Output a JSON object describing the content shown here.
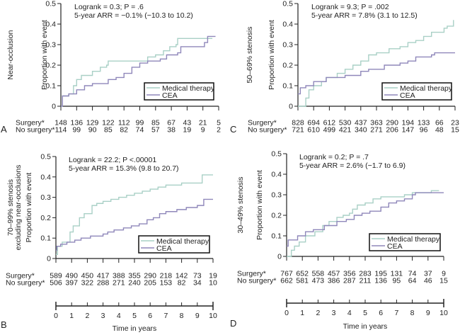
{
  "colors": {
    "medical": "#a9d0c6",
    "cea": "#8f87ba",
    "axis": "#222222"
  },
  "time_axis": {
    "label": "Time in years",
    "ticks": [
      "0",
      "1",
      "2",
      "3",
      "4",
      "5",
      "6",
      "7",
      "8",
      "9",
      "10"
    ]
  },
  "risk_labels": {
    "surgery": "Surgery*",
    "no_surgery": "No surgery*"
  },
  "chart_data": [
    {
      "panel": "A",
      "type": "line",
      "group_label": "Near-occlusion",
      "ylabel": "Proportion with event",
      "xlabel": "Time in years",
      "xlim": [
        0,
        10
      ],
      "ylim": [
        0,
        0.5
      ],
      "yticks": [
        "0",
        "0.1",
        "0.2",
        "0.3",
        "0.4",
        "0.5"
      ],
      "stats": [
        "Logrank = 0.3; P = .6",
        "5-year ARR = −0.1% (−10.3 to 10.2)"
      ],
      "legend": [
        "Medical therapy",
        "CEA"
      ],
      "legend_position": "bottom-right",
      "series": [
        {
          "name": "Medical therapy",
          "x": [
            0,
            0.1,
            0.5,
            0.8,
            1.0,
            1.3,
            2.0,
            2.5,
            2.9,
            3.0,
            5.4,
            5.5,
            6.0,
            6.5,
            6.9,
            7.3,
            7.4,
            9.6
          ],
          "y": [
            0,
            0.05,
            0.06,
            0.1,
            0.13,
            0.15,
            0.17,
            0.19,
            0.2,
            0.22,
            0.22,
            0.24,
            0.25,
            0.27,
            0.29,
            0.3,
            0.33,
            0.33
          ]
        },
        {
          "name": "CEA",
          "x": [
            0,
            0.1,
            0.5,
            1.0,
            1.5,
            2.0,
            3.0,
            3.5,
            4.0,
            4.5,
            5.0,
            5.5,
            6.3,
            6.7,
            7.4,
            7.6,
            9.1,
            9.3,
            9.8
          ],
          "y": [
            0,
            0.05,
            0.06,
            0.08,
            0.1,
            0.11,
            0.13,
            0.14,
            0.16,
            0.19,
            0.21,
            0.22,
            0.23,
            0.25,
            0.26,
            0.29,
            0.31,
            0.34,
            0.34
          ]
        }
      ],
      "at_risk": {
        "surgery": [
          "148",
          "136",
          "129",
          "122",
          "112",
          "99",
          "85",
          "67",
          "43",
          "21",
          "5"
        ],
        "no_surgery": [
          "114",
          "99",
          "90",
          "85",
          "82",
          "74",
          "57",
          "38",
          "19",
          "9",
          "2"
        ]
      }
    },
    {
      "panel": "B",
      "type": "line",
      "group_label": "70–99% stenosis excluding near-occlusions",
      "group_label_lines": [
        "70–99% stenosis",
        "excluding near-occlusions"
      ],
      "ylabel": "Proportion with event",
      "xlabel": "Time in years",
      "xlim": [
        0,
        10
      ],
      "ylim": [
        0,
        0.5
      ],
      "yticks": [
        "0",
        "0.1",
        "0.2",
        "0.3",
        "0.4",
        "0.5"
      ],
      "stats": [
        "Logrank = 22.2; P <.00001",
        "5-year ARR = 15.3% (9.8 to 20.7)"
      ],
      "legend": [
        "Medical therapy",
        "CEA"
      ],
      "legend_position": "bottom-right",
      "series": [
        {
          "name": "Medical therapy",
          "x": [
            0,
            0.1,
            0.4,
            0.9,
            1.1,
            1.5,
            1.8,
            2.3,
            2.6,
            3.0,
            3.5,
            4.0,
            4.5,
            5.0,
            5.5,
            6.0,
            6.5,
            7.0,
            8.0,
            9.3,
            9.31,
            10
          ],
          "y": [
            0.02,
            0.06,
            0.08,
            0.13,
            0.16,
            0.2,
            0.22,
            0.26,
            0.27,
            0.28,
            0.29,
            0.3,
            0.31,
            0.32,
            0.33,
            0.34,
            0.35,
            0.36,
            0.37,
            0.37,
            0.41,
            0.41
          ]
        },
        {
          "name": "CEA",
          "x": [
            0,
            0.05,
            0.3,
            0.7,
            1.2,
            1.6,
            2.2,
            3.0,
            3.3,
            3.7,
            4.3,
            4.8,
            5.3,
            5.8,
            6.2,
            6.6,
            7.0,
            7.7,
            8.3,
            9.0,
            9.4,
            9.41,
            10
          ],
          "y": [
            0.04,
            0.06,
            0.07,
            0.08,
            0.09,
            0.1,
            0.11,
            0.12,
            0.13,
            0.14,
            0.15,
            0.16,
            0.17,
            0.19,
            0.2,
            0.22,
            0.23,
            0.24,
            0.25,
            0.26,
            0.26,
            0.29,
            0.29
          ]
        }
      ],
      "at_risk": {
        "surgery": [
          "589",
          "490",
          "450",
          "417",
          "388",
          "355",
          "290",
          "218",
          "142",
          "73",
          "19"
        ],
        "no_surgery": [
          "506",
          "397",
          "322",
          "288",
          "271",
          "240",
          "205",
          "153",
          "82",
          "34",
          "10"
        ]
      }
    },
    {
      "panel": "C",
      "type": "line",
      "group_label": "50–69% stenosis",
      "ylabel": "Proportion with event",
      "xlabel": "Time in years",
      "xlim": [
        0,
        10
      ],
      "ylim": [
        0,
        0.5
      ],
      "yticks": [
        "0",
        "0.1",
        "0.2",
        "0.3",
        "0.4",
        "0.5"
      ],
      "stats": [
        "Logrank = 9.3; P = .002",
        "5-year ARR = 7.8% (3.1 to 12.5)"
      ],
      "legend": [
        "Medical therapy",
        "CEA"
      ],
      "legend_position": "bottom-right",
      "series": [
        {
          "name": "Medical therapy",
          "x": [
            0,
            0.5,
            0.7,
            1.0,
            1.5,
            1.8,
            2.5,
            3.0,
            3.5,
            4.0,
            4.5,
            5.0,
            5.8,
            6.5,
            7.0,
            7.5,
            8.0,
            8.5,
            9.2,
            9.3,
            9.5,
            9.9,
            9.9
          ],
          "y": [
            0,
            0.04,
            0.08,
            0.1,
            0.12,
            0.14,
            0.16,
            0.18,
            0.2,
            0.22,
            0.25,
            0.26,
            0.28,
            0.29,
            0.31,
            0.32,
            0.34,
            0.36,
            0.36,
            0.38,
            0.39,
            0.39,
            0.42
          ]
        },
        {
          "name": "CEA",
          "x": [
            0,
            0.15,
            0.5,
            1.0,
            1.5,
            1.8,
            2.5,
            3.0,
            3.5,
            4.0,
            4.5,
            5.5,
            6.5,
            7.0,
            7.5,
            8.5,
            8.7,
            10
          ],
          "y": [
            0.06,
            0.09,
            0.1,
            0.12,
            0.12,
            0.14,
            0.14,
            0.15,
            0.15,
            0.17,
            0.18,
            0.2,
            0.21,
            0.22,
            0.24,
            0.25,
            0.26,
            0.26
          ]
        }
      ],
      "at_risk": {
        "surgery": [
          "828",
          "694",
          "612",
          "530",
          "437",
          "363",
          "290",
          "194",
          "133",
          "66",
          "23"
        ],
        "no_surgery": [
          "721",
          "610",
          "499",
          "421",
          "340",
          "271",
          "206",
          "147",
          "96",
          "48",
          "15"
        ]
      }
    },
    {
      "panel": "D",
      "type": "line",
      "group_label": "30–49% stenosis",
      "ylabel": "Proportion with event",
      "xlabel": "Time in years",
      "xlim": [
        0,
        10
      ],
      "ylim": [
        0,
        0.5
      ],
      "yticks": [
        "0",
        "0.1",
        "0.2",
        "0.3",
        "0.4",
        "0.5"
      ],
      "stats": [
        "Logrank = 0.2; P = .7",
        "5-year ARR = 2.6% (−1.7 to 6.9)"
      ],
      "legend": [
        "Medical therapy",
        "CEA"
      ],
      "legend_position": "bottom-right",
      "series": [
        {
          "name": "Medical therapy",
          "x": [
            0,
            0.3,
            0.5,
            0.8,
            1.2,
            1.8,
            2.3,
            2.7,
            3.2,
            3.6,
            4.0,
            4.2,
            4.5,
            5.0,
            5.5,
            6.0,
            7.5,
            8.0,
            9.2,
            9.21,
            9.7
          ],
          "y": [
            0,
            0.03,
            0.05,
            0.07,
            0.1,
            0.12,
            0.15,
            0.17,
            0.19,
            0.2,
            0.21,
            0.23,
            0.25,
            0.26,
            0.28,
            0.29,
            0.3,
            0.31,
            0.31,
            0.32,
            0.32
          ]
        },
        {
          "name": "CEA",
          "x": [
            0,
            0.1,
            0.7,
            1.2,
            1.7,
            2.4,
            3.2,
            3.8,
            4.3,
            4.8,
            5.3,
            6.0,
            6.5,
            7.0,
            7.5,
            8.0,
            8.2,
            10
          ],
          "y": [
            0.05,
            0.08,
            0.1,
            0.12,
            0.13,
            0.15,
            0.17,
            0.18,
            0.2,
            0.21,
            0.22,
            0.24,
            0.26,
            0.27,
            0.28,
            0.3,
            0.31,
            0.31
          ]
        }
      ],
      "at_risk": {
        "surgery": [
          "767",
          "652",
          "558",
          "457",
          "356",
          "283",
          "195",
          "131",
          "74",
          "37",
          "9"
        ],
        "no_surgery": [
          "662",
          "581",
          "473",
          "386",
          "287",
          "211",
          "136",
          "95",
          "64",
          "46",
          "15"
        ]
      }
    }
  ]
}
